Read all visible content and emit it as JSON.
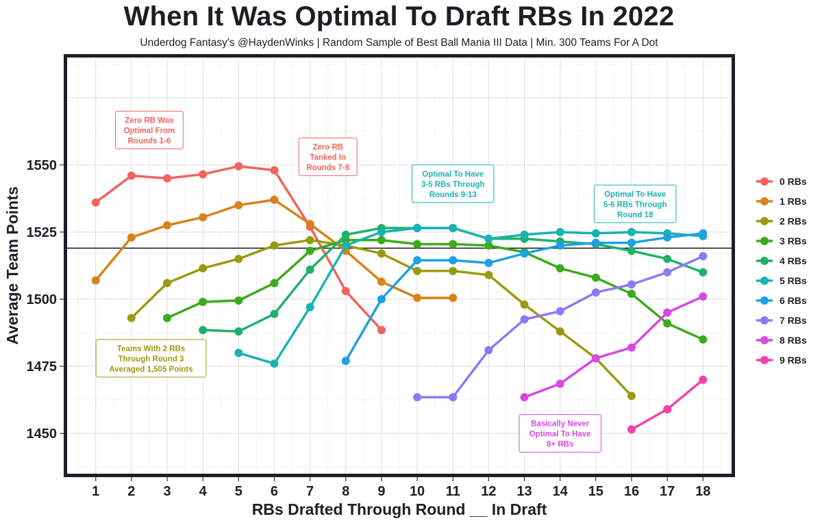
{
  "title": "When It Was Optimal To Draft RBs In 2022",
  "subtitle": "Underdog Fantasy's @HaydenWinks | Random Sample of Best Ball Mania III Data | Min. 300 Teams For A Dot",
  "chart_data": {
    "type": "line",
    "xlabel": "RBs Drafted Through Round __ In Draft",
    "ylabel": "Average Team Points",
    "xlim": [
      0.2,
      18.8
    ],
    "ylim": [
      1435,
      1590
    ],
    "x_ticks": [
      1,
      2,
      3,
      4,
      5,
      6,
      7,
      8,
      9,
      10,
      11,
      12,
      13,
      14,
      15,
      16,
      17,
      18
    ],
    "y_ticks": [
      1450,
      1475,
      1500,
      1525,
      1550
    ],
    "reference_line": 1519,
    "legend_position": "right",
    "grid": true,
    "series": [
      {
        "name": "0 RBs",
        "color": "#F0645D",
        "x": [
          1,
          2,
          3,
          4,
          5,
          6,
          7,
          8,
          9
        ],
        "values": [
          1536,
          1546,
          1545,
          1546.5,
          1549.5,
          1548,
          1527,
          1503,
          1488.5
        ]
      },
      {
        "name": "1 RBs",
        "color": "#D9821A",
        "x": [
          1,
          2,
          3,
          4,
          5,
          6,
          7,
          8,
          9,
          10,
          11
        ],
        "values": [
          1507,
          1523,
          1527.5,
          1530.5,
          1535,
          1537,
          1528,
          1518,
          1506.5,
          1500.5,
          1500.5
        ]
      },
      {
        "name": "2 RBs",
        "color": "#9A9A12",
        "x": [
          2,
          3,
          4,
          5,
          6,
          7,
          8,
          9,
          10,
          11,
          12,
          13,
          14,
          15,
          16
        ],
        "values": [
          1493,
          1506,
          1511.5,
          1515,
          1520,
          1522,
          1520,
          1517,
          1510.5,
          1510.5,
          1509,
          1498,
          1488,
          1478,
          1464
        ]
      },
      {
        "name": "3 RBs",
        "color": "#3BAA1C",
        "x": [
          3,
          4,
          5,
          6,
          7,
          8,
          9,
          10,
          11,
          12,
          13,
          14,
          15,
          16,
          17,
          18
        ],
        "values": [
          1493,
          1499,
          1499.5,
          1506,
          1518,
          1522,
          1522,
          1520.5,
          1520.5,
          1520,
          1517.5,
          1511.5,
          1508,
          1502,
          1491,
          1485
        ]
      },
      {
        "name": "4 RBs",
        "color": "#20B06C",
        "x": [
          4,
          5,
          6,
          7,
          8,
          9,
          10,
          11,
          12,
          13,
          14,
          15,
          16,
          17,
          18
        ],
        "values": [
          1488.5,
          1488,
          1494.5,
          1511,
          1524,
          1526.5,
          1526.5,
          1526.5,
          1522.5,
          1522.5,
          1521.5,
          1520.5,
          1518,
          1515,
          1510
        ]
      },
      {
        "name": "5 RBs",
        "color": "#1AB2B2",
        "x": [
          5,
          6,
          7,
          8,
          9,
          10,
          11,
          12,
          13,
          14,
          15,
          16,
          17,
          18
        ],
        "values": [
          1480,
          1476,
          1497,
          1520,
          1525,
          1526.5,
          1526.5,
          1522.5,
          1524,
          1525,
          1524.5,
          1525,
          1524.5,
          1523.5
        ]
      },
      {
        "name": "6 RBs",
        "color": "#1EA0E6",
        "x": [
          8,
          9,
          10,
          11,
          12,
          13,
          14,
          15,
          16,
          17,
          18
        ],
        "values": [
          1477,
          1500,
          1514.5,
          1514.5,
          1513.5,
          1517,
          1520,
          1521,
          1521,
          1523,
          1524.5
        ]
      },
      {
        "name": "7 RBs",
        "color": "#8A7BF5",
        "x": [
          10,
          11,
          12,
          13,
          14,
          15,
          16,
          17,
          18
        ],
        "values": [
          1463.5,
          1463.5,
          1481,
          1492.5,
          1495.5,
          1502.5,
          1505.5,
          1510,
          1516
        ]
      },
      {
        "name": "8 RBs",
        "color": "#D848E6",
        "x": [
          13,
          14,
          15,
          16,
          17,
          18
        ],
        "values": [
          1463.5,
          1468.5,
          1478,
          1482,
          1495,
          1501
        ]
      },
      {
        "name": "9 RBs",
        "color": "#F542A8",
        "x": [
          16,
          17,
          18
        ],
        "values": [
          1451.5,
          1459,
          1470
        ]
      }
    ],
    "annotations": [
      {
        "lines": [
          "Zero RB Was",
          "Optimal From",
          "Rounds 1-6"
        ],
        "color": "#F0645D",
        "x": 2.5,
        "y": 1563
      },
      {
        "lines": [
          "Zero RB",
          "Tanked In",
          "Rounds 7-8"
        ],
        "color": "#F0645D",
        "x": 7.5,
        "y": 1553
      },
      {
        "lines": [
          "Optimal To Have",
          "3-5 RBs Through",
          "Rounds 9-13"
        ],
        "color": "#1AB2B2",
        "x": 11,
        "y": 1543
      },
      {
        "lines": [
          "Optimal To Have",
          "5-6 RBs Through",
          "Round 18"
        ],
        "color": "#1AB2B2",
        "x": 16.1,
        "y": 1535.5
      },
      {
        "lines": [
          "Teams With 2 RBs",
          "Through Round 3",
          "Averaged 1,505 Points"
        ],
        "color": "#9A9A12",
        "x": 2.55,
        "y": 1478
      },
      {
        "lines": [
          "Basically Never",
          "Optimal To Have",
          "8+ RBs"
        ],
        "color": "#D848E6",
        "x": 14,
        "y": 1450
      }
    ]
  }
}
